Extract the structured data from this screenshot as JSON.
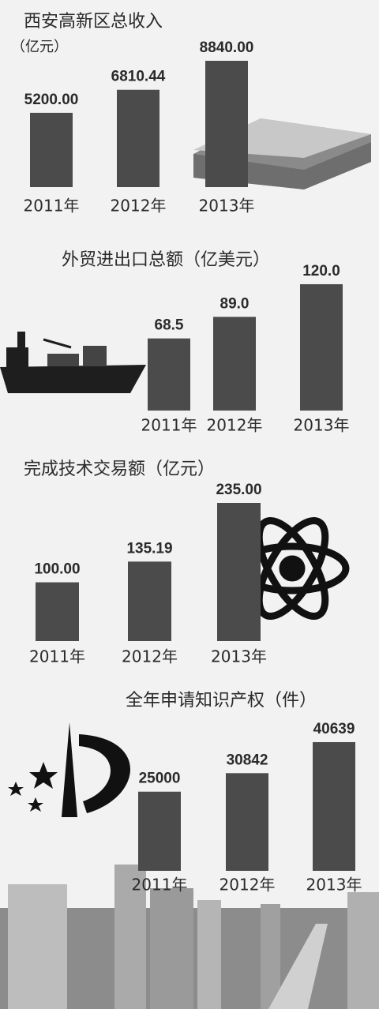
{
  "chart_data": [
    {
      "type": "bar",
      "title": "西安高新区总收入",
      "subtitle": "（亿元）",
      "color": "#4b4b4b",
      "categories": [
        "2011年",
        "2012年",
        "2013年"
      ],
      "values": [
        5200,
        6810.44,
        8840
      ],
      "value_labels": [
        "5200.00",
        "6810.44",
        "8840.00"
      ]
    },
    {
      "type": "bar",
      "title": "外贸进出口总额（亿美元）",
      "color": "#4b4b4b",
      "categories": [
        "2011年",
        "2012年",
        "2013年"
      ],
      "values": [
        68.5,
        89,
        120
      ],
      "value_labels": [
        "68.5",
        "89.0",
        "120.0"
      ]
    },
    {
      "type": "bar",
      "title": "完成技术交易额（亿元）",
      "color": "#4b4b4b",
      "categories": [
        "2011年",
        "2012年",
        "2013年"
      ],
      "values": [
        100,
        135.19,
        235
      ],
      "value_labels": [
        "100.00",
        "135.19",
        "235.00"
      ]
    },
    {
      "type": "bar",
      "title": "全年申请知识产权（件）",
      "color": "#4b4b4b",
      "categories": [
        "2011年",
        "2012年",
        "2013年"
      ],
      "values": [
        25000,
        30842,
        40639
      ]
    }
  ]
}
